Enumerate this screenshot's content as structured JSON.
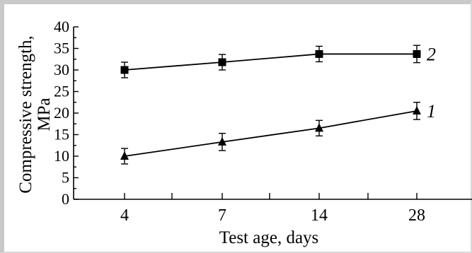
{
  "chart_data": {
    "type": "line",
    "xlabel": "Test age, days",
    "ylabel_line1": "Compressive strength,",
    "ylabel_line2": "MPa",
    "categories": [
      "4",
      "7",
      "14",
      "28"
    ],
    "ylim": [
      0,
      40
    ],
    "yticks": [
      "0",
      "5",
      "10",
      "15",
      "20",
      "25",
      "30",
      "35",
      "40"
    ],
    "grid": false,
    "series": [
      {
        "name": "2",
        "marker": "square",
        "values": [
          30,
          31.8,
          33.7,
          33.7
        ],
        "error": [
          1.8,
          1.8,
          1.8,
          2
        ]
      },
      {
        "name": "1",
        "marker": "triangle",
        "values": [
          10,
          13.3,
          16.5,
          20.5
        ],
        "error": [
          1.8,
          2,
          1.8,
          2
        ]
      }
    ]
  }
}
